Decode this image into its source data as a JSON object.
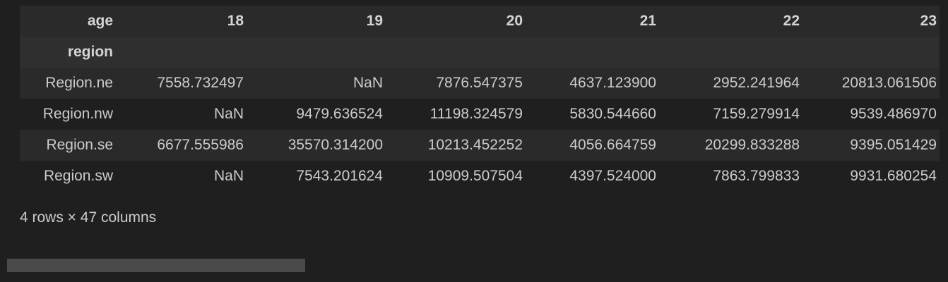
{
  "table": {
    "columns_label": "age",
    "index_label": "region",
    "columns": [
      "18",
      "19",
      "20",
      "21",
      "22",
      "23"
    ],
    "rows": [
      {
        "index": "Region.ne",
        "cells": [
          "7558.732497",
          "NaN",
          "7876.547375",
          "4637.123900",
          "2952.241964",
          "20813.061506"
        ]
      },
      {
        "index": "Region.nw",
        "cells": [
          "NaN",
          "9479.636524",
          "11198.324579",
          "5830.544660",
          "7159.279914",
          "9539.486970"
        ]
      },
      {
        "index": "Region.se",
        "cells": [
          "6677.555986",
          "35570.314200",
          "10213.452252",
          "4056.664759",
          "20299.833288",
          "9395.051429"
        ]
      },
      {
        "index": "Region.sw",
        "cells": [
          "NaN",
          "7543.201624",
          "10909.507504",
          "4397.524000",
          "7863.799833",
          "9931.680254"
        ]
      }
    ]
  },
  "caption": "4 rows × 47 columns",
  "scrollbar": {
    "position_fraction": 0.0,
    "visible_fraction": 0.32
  }
}
